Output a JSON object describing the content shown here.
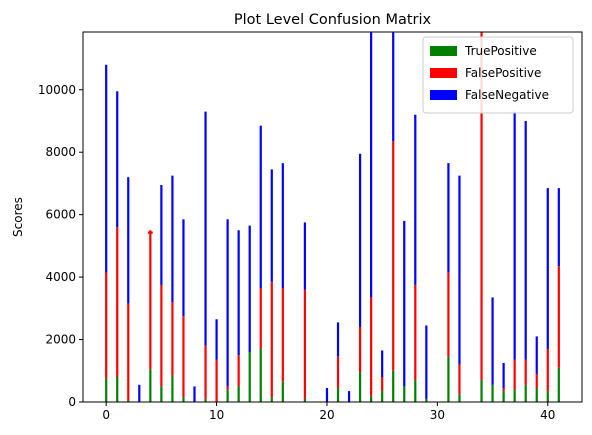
{
  "chart_data": {
    "type": "bar",
    "stacked": true,
    "title": "Plot Level Confusion Matrix",
    "xlabel": "",
    "ylabel": "Scores",
    "xlim": [
      -2.1,
      43.1
    ],
    "ylim": [
      0,
      11850
    ],
    "xticks": [
      0,
      10,
      20,
      30,
      40
    ],
    "yticks": [
      0,
      2000,
      4000,
      6000,
      8000,
      10000
    ],
    "legend_position": "top-right",
    "x": [
      0,
      1,
      2,
      3,
      4,
      5,
      6,
      7,
      8,
      9,
      10,
      11,
      12,
      13,
      14,
      15,
      16,
      17,
      18,
      19,
      20,
      21,
      22,
      23,
      24,
      25,
      26,
      27,
      28,
      29,
      30,
      31,
      32,
      33,
      34,
      35,
      36,
      37,
      38,
      39,
      40,
      41
    ],
    "series": [
      {
        "name": "TruePositive",
        "color": "#008000",
        "values": [
          750,
          800,
          50,
          0,
          1050,
          500,
          850,
          150,
          0,
          100,
          0,
          400,
          500,
          1600,
          1700,
          150,
          650,
          0,
          100,
          0,
          0,
          450,
          0,
          950,
          200,
          350,
          1000,
          500,
          700,
          100,
          0,
          1450,
          250,
          0,
          700,
          550,
          350,
          400,
          550,
          450,
          350,
          1100
        ]
      },
      {
        "name": "FalsePositive",
        "color": "#ff0000",
        "values": [
          3400,
          4800,
          3100,
          0,
          4450,
          3250,
          2350,
          2600,
          0,
          1700,
          1350,
          100,
          1000,
          0,
          1950,
          3700,
          3000,
          0,
          3500,
          0,
          0,
          1000,
          0,
          1450,
          3150,
          450,
          7350,
          0,
          3050,
          0,
          0,
          2700,
          950,
          0,
          11700,
          0,
          100,
          950,
          800,
          450,
          1350,
          3250
        ]
      },
      {
        "name": "FalseNegative",
        "color": "#0000ff",
        "values": [
          6650,
          4350,
          4050,
          550,
          0,
          3200,
          4050,
          3100,
          500,
          7500,
          1300,
          5350,
          4000,
          4050,
          5200,
          3600,
          4000,
          0,
          2150,
          0,
          450,
          1100,
          350,
          5550,
          8500,
          850,
          3500,
          5300,
          5450,
          2350,
          0,
          3500,
          6050,
          0,
          0,
          2800,
          800,
          7950,
          7650,
          1200,
          5150,
          2500
        ]
      }
    ],
    "extra_markers": [
      {
        "x": 4,
        "y": 5460,
        "color": "#ff0000"
      }
    ]
  }
}
